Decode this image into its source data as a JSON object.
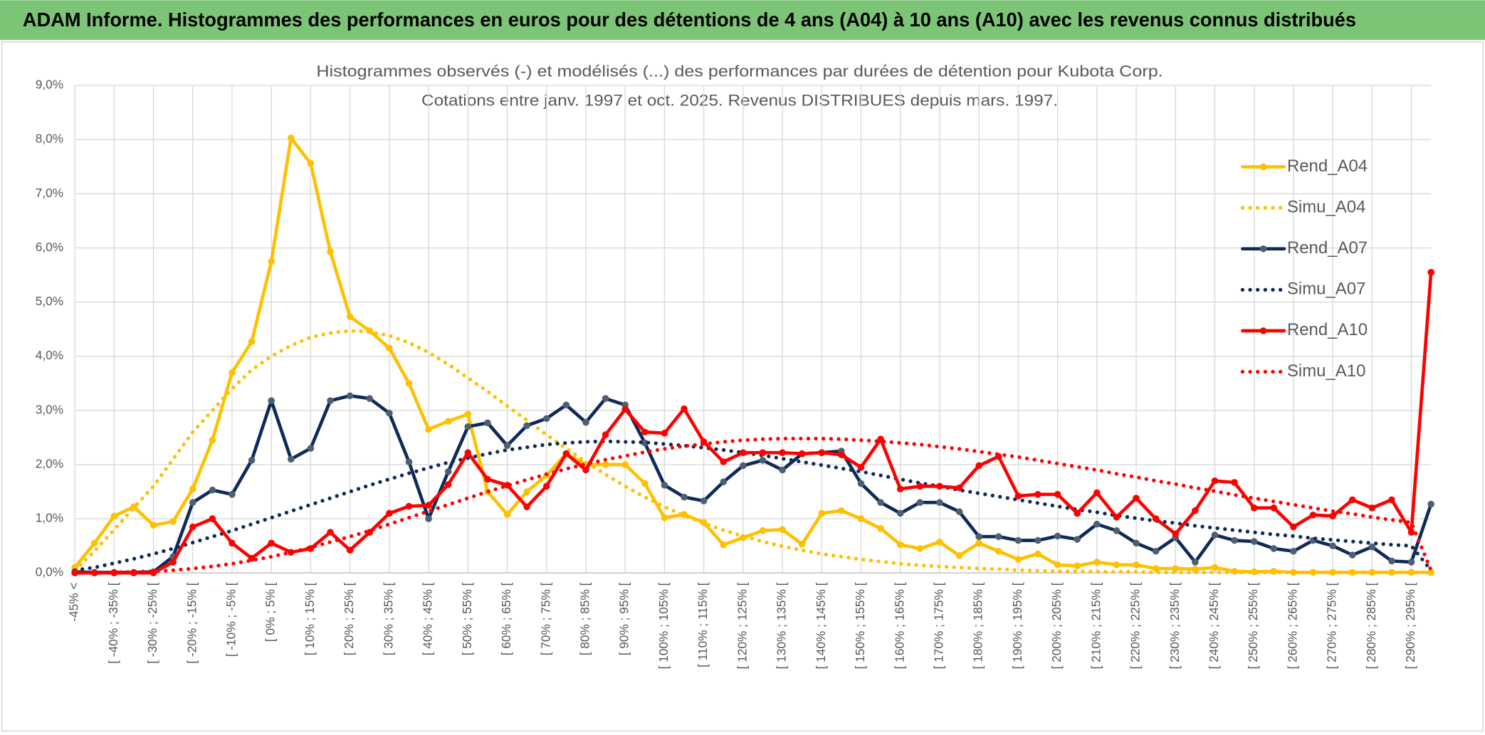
{
  "header": {
    "title": "ADAM Informe. Histogrammes des performances en euros pour des détentions de 4 ans (A04) à 10 ans (A10) avec les revenus connus distribués"
  },
  "chart_data": {
    "type": "line",
    "title": "Histogrammes observés (-) et modélisés (...) des performances par durées de détention pour Kubota Corp.",
    "subtitle": "Cotations entre janv. 1997 et oct. 2025. Revenus DISTRIBUES depuis mars. 1997.",
    "categories": [
      "-45% <",
      null,
      "[ -40% ; -35% [",
      null,
      "[ -30% ; -25% [",
      null,
      "[ -20% ; -15% [",
      null,
      "[ -10% ; -5% [",
      null,
      "[ 0% ; 5% [",
      null,
      "[ 10% ; 15% [",
      null,
      "[ 20% ; 25% [",
      null,
      "[ 30% ; 35% [",
      null,
      "[ 40% ; 45% [",
      null,
      "[ 50% ; 55% [",
      null,
      "[ 60% ; 65% [",
      null,
      "[ 70% ; 75% [",
      null,
      "[ 80% ; 85% [",
      null,
      "[ 90% ; 95% [",
      null,
      "[ 100% ; 105% [",
      null,
      "[ 110% ; 115% [",
      null,
      "[ 120% ; 125% [",
      null,
      "[ 130% ; 135% [",
      null,
      "[ 140% ; 145% [",
      null,
      "[ 150% ; 155% [",
      null,
      "[ 160% ; 165% [",
      null,
      "[ 170% ; 175% [",
      null,
      "[ 180% ; 185% [",
      null,
      "[ 190% ; 195% [",
      null,
      "[ 200% ; 205% [",
      null,
      "[ 210% ; 215% [",
      null,
      "[ 220% ; 225% [",
      null,
      "[ 230% ; 235% [",
      null,
      "[ 240% ; 245% [",
      null,
      "[ 250% ; 255% [",
      null,
      "[ 260% ; 265% [",
      null,
      "[ 270% ; 275% [",
      null,
      "[ 280% ; 285% [",
      null,
      "[ 290% ; 295% [",
      null
    ],
    "ylim": [
      0,
      9
    ],
    "yticks": [
      {
        "value": 0,
        "label": "0,0%"
      },
      {
        "value": 1,
        "label": "1,0%"
      },
      {
        "value": 2,
        "label": "2,0%"
      },
      {
        "value": 3,
        "label": "3,0%"
      },
      {
        "value": 4,
        "label": "4,0%"
      },
      {
        "value": 5,
        "label": "5,0%"
      },
      {
        "value": 6,
        "label": "6,0%"
      },
      {
        "value": 7,
        "label": "7,0%"
      },
      {
        "value": 8,
        "label": "8,0%"
      },
      {
        "value": 9,
        "label": "9,0%"
      }
    ],
    "grid": true,
    "legend": "right",
    "series": [
      {
        "name": "Rend_A04",
        "color": "#FFC000",
        "dash": "solid",
        "marker": true,
        "values": [
          0.1,
          0.55,
          1.05,
          1.22,
          0.88,
          0.95,
          1.55,
          2.45,
          3.7,
          4.27,
          5.75,
          8.03,
          7.56,
          5.93,
          4.73,
          4.47,
          4.15,
          3.5,
          2.65,
          2.8,
          2.93,
          1.5,
          1.08,
          1.5,
          1.8,
          2.2,
          2.0,
          2.0,
          2.0,
          1.65,
          1.02,
          1.08,
          0.93,
          0.52,
          0.65,
          0.78,
          0.8,
          0.53,
          1.1,
          1.15,
          1.0,
          0.82,
          0.52,
          0.45,
          0.57,
          0.32,
          0.55,
          0.4,
          0.25,
          0.35,
          0.15,
          0.13,
          0.2,
          0.15,
          0.15,
          0.08,
          0.08,
          0.07,
          0.1,
          0.03,
          0.02,
          0.03,
          0.01,
          0.01,
          0.01,
          0.01,
          0.01,
          0.01,
          0.01,
          0.01
        ]
      },
      {
        "name": "Simu_A04",
        "color": "#FFC000",
        "dash": "dotted",
        "marker": false,
        "values": [
          0.05,
          0.4,
          0.8,
          1.2,
          1.6,
          2.1,
          2.6,
          3.0,
          3.4,
          3.75,
          4.0,
          4.2,
          4.35,
          4.43,
          4.47,
          4.45,
          4.38,
          4.25,
          4.07,
          3.85,
          3.6,
          3.35,
          3.08,
          2.82,
          2.55,
          2.3,
          2.05,
          1.82,
          1.6,
          1.4,
          1.22,
          1.06,
          0.92,
          0.79,
          0.68,
          0.58,
          0.49,
          0.42,
          0.35,
          0.3,
          0.25,
          0.21,
          0.17,
          0.14,
          0.12,
          0.1,
          0.08,
          0.07,
          0.05,
          0.04,
          0.03,
          0.03,
          0.02,
          0.02,
          0.02,
          0.01,
          0.01,
          0.01,
          0.01,
          0.01,
          0.01,
          0.01,
          0.01,
          0.01,
          0.01,
          0.01,
          0.01,
          0.01,
          0.01,
          0.01
        ]
      },
      {
        "name": "Rend_A07",
        "color": "#0F2A5A",
        "marker_color": "#4F5F72",
        "dash": "solid",
        "marker": true,
        "values": [
          0.02,
          0.01,
          0.01,
          0.01,
          0.02,
          0.3,
          1.3,
          1.53,
          1.45,
          2.08,
          3.18,
          2.1,
          2.3,
          3.18,
          3.27,
          3.22,
          2.95,
          2.05,
          1.0,
          1.87,
          2.7,
          2.77,
          2.35,
          2.72,
          2.85,
          3.1,
          2.78,
          3.22,
          3.1,
          2.4,
          1.62,
          1.4,
          1.33,
          1.68,
          1.98,
          2.08,
          1.9,
          2.2,
          2.22,
          2.25,
          1.65,
          1.3,
          1.1,
          1.3,
          1.3,
          1.13,
          0.67,
          0.67,
          0.6,
          0.6,
          0.68,
          0.62,
          0.9,
          0.78,
          0.55,
          0.4,
          0.65,
          0.2,
          0.7,
          0.6,
          0.58,
          0.45,
          0.4,
          0.6,
          0.5,
          0.33,
          0.48,
          0.22,
          0.2,
          1.27
        ]
      },
      {
        "name": "Simu_A07",
        "color": "#0F2A5A",
        "dash": "dotted",
        "marker": false,
        "values": [
          0.05,
          0.1,
          0.18,
          0.26,
          0.35,
          0.45,
          0.56,
          0.67,
          0.78,
          0.9,
          1.02,
          1.14,
          1.26,
          1.38,
          1.5,
          1.62,
          1.73,
          1.84,
          1.94,
          2.04,
          2.12,
          2.2,
          2.27,
          2.32,
          2.37,
          2.4,
          2.42,
          2.43,
          2.42,
          2.41,
          2.38,
          2.35,
          2.31,
          2.27,
          2.22,
          2.17,
          2.11,
          2.05,
          1.99,
          1.93,
          1.87,
          1.8,
          1.73,
          1.66,
          1.6,
          1.53,
          1.47,
          1.41,
          1.35,
          1.29,
          1.23,
          1.17,
          1.12,
          1.06,
          1.01,
          0.96,
          0.92,
          0.87,
          0.83,
          0.79,
          0.75,
          0.71,
          0.68,
          0.64,
          0.61,
          0.58,
          0.55,
          0.52,
          0.5,
          0.05
        ]
      },
      {
        "name": "Rend_A10",
        "color": "#FF0000",
        "dash": "solid",
        "marker": true,
        "values": [
          0.0,
          0.0,
          0.0,
          0.0,
          0.0,
          0.2,
          0.85,
          1.0,
          0.55,
          0.27,
          0.55,
          0.38,
          0.45,
          0.75,
          0.42,
          0.75,
          1.1,
          1.23,
          1.25,
          1.63,
          2.22,
          1.73,
          1.62,
          1.22,
          1.6,
          2.2,
          1.9,
          2.55,
          3.02,
          2.6,
          2.58,
          3.03,
          2.42,
          2.05,
          2.22,
          2.22,
          2.22,
          2.2,
          2.22,
          2.18,
          1.95,
          2.47,
          1.55,
          1.6,
          1.6,
          1.57,
          1.98,
          2.15,
          1.42,
          1.45,
          1.45,
          1.1,
          1.48,
          1.03,
          1.38,
          1.0,
          0.72,
          1.15,
          1.7,
          1.67,
          1.2,
          1.2,
          0.85,
          1.07,
          1.05,
          1.35,
          1.2,
          1.35,
          0.75,
          5.55
        ]
      },
      {
        "name": "Simu_A10",
        "color": "#FF0000",
        "dash": "dotted",
        "marker": false,
        "values": [
          0.0,
          0.0,
          0.01,
          0.02,
          0.03,
          0.05,
          0.08,
          0.12,
          0.17,
          0.23,
          0.3,
          0.38,
          0.47,
          0.57,
          0.67,
          0.78,
          0.9,
          1.02,
          1.14,
          1.26,
          1.38,
          1.5,
          1.61,
          1.72,
          1.82,
          1.92,
          2.01,
          2.09,
          2.16,
          2.23,
          2.29,
          2.34,
          2.38,
          2.42,
          2.45,
          2.47,
          2.48,
          2.48,
          2.48,
          2.47,
          2.45,
          2.43,
          2.4,
          2.37,
          2.33,
          2.29,
          2.24,
          2.19,
          2.14,
          2.08,
          2.02,
          1.96,
          1.9,
          1.83,
          1.77,
          1.7,
          1.64,
          1.57,
          1.51,
          1.44,
          1.38,
          1.32,
          1.26,
          1.2,
          1.14,
          1.09,
          1.03,
          0.98,
          0.93,
          0.05
        ]
      }
    ]
  }
}
